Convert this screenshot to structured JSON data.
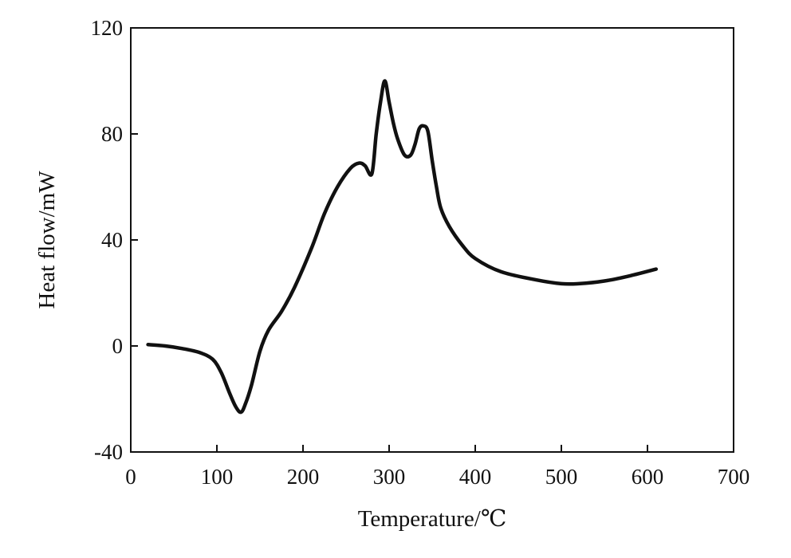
{
  "chart_data": {
    "type": "line",
    "title": "",
    "xlabel": "Temperature/℃",
    "ylabel": "Heat flow/mW",
    "xlim": [
      0,
      700
    ],
    "ylim": [
      -40,
      120
    ],
    "xticks": [
      0,
      100,
      200,
      300,
      400,
      500,
      600,
      700
    ],
    "yticks": [
      -40,
      0,
      40,
      80,
      120
    ],
    "xtick_labels": [
      "0",
      "100",
      "200",
      "300",
      "400",
      "500",
      "600",
      "700"
    ],
    "ytick_labels": [
      "-40",
      "0",
      "40",
      "80",
      "120"
    ],
    "grid": false,
    "legend": "none",
    "line_color": "#111111",
    "series": [
      {
        "x": [
          20,
          40,
          60,
          80,
          95,
          105,
          115,
          122,
          128,
          133,
          140,
          150,
          160,
          175,
          190,
          210,
          225,
          240,
          255,
          265,
          272,
          280,
          285,
          290,
          295,
          300,
          305,
          310,
          318,
          325,
          330,
          335,
          340,
          345,
          350,
          355,
          360,
          370,
          385,
          400,
          430,
          470,
          500,
          520,
          550,
          580,
          610
        ],
        "y": [
          0.5,
          0,
          -1,
          -2.5,
          -5,
          -10,
          -18,
          -23,
          -25,
          -22,
          -15,
          -2,
          6,
          13,
          22,
          37,
          50,
          60,
          67,
          69,
          68,
          65,
          80,
          92,
          100,
          92,
          84,
          78,
          72,
          72,
          76,
          82,
          83,
          81,
          70,
          60,
          52,
          45,
          38,
          33,
          28,
          25,
          23.5,
          23.5,
          24.5,
          26.5,
          29
        ]
      }
    ]
  }
}
